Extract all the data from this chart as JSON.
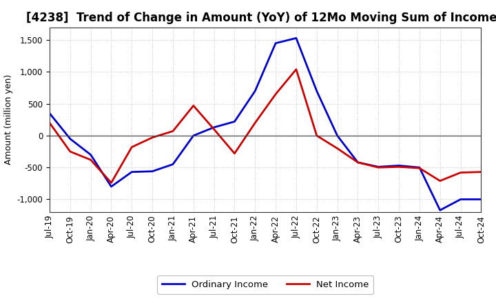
{
  "title": "[4238]  Trend of Change in Amount (YoY) of 12Mo Moving Sum of Incomes",
  "ylabel": "Amount (million yen)",
  "x_labels": [
    "Jul-19",
    "Oct-19",
    "Jan-20",
    "Apr-20",
    "Jul-20",
    "Oct-20",
    "Jan-21",
    "Apr-21",
    "Jul-21",
    "Oct-21",
    "Jan-22",
    "Apr-22",
    "Jul-22",
    "Oct-22",
    "Jan-23",
    "Apr-23",
    "Jul-23",
    "Oct-23",
    "Jan-24",
    "Apr-24",
    "Jul-24",
    "Oct-24"
  ],
  "ordinary_income": [
    350,
    -50,
    -300,
    -800,
    -570,
    -560,
    -450,
    0,
    130,
    220,
    700,
    1450,
    1530,
    700,
    0,
    -420,
    -490,
    -470,
    -500,
    -1170,
    -1000,
    -1000
  ],
  "net_income": [
    200,
    -250,
    -380,
    -740,
    -180,
    -30,
    70,
    470,
    100,
    -280,
    200,
    650,
    1040,
    0,
    -200,
    -420,
    -500,
    -490,
    -510,
    -710,
    -580,
    -570
  ],
  "ordinary_color": "#0000cc",
  "net_color": "#cc0000",
  "grid_color": "#bbbbbb",
  "background_color": "#FFFFFF",
  "ylim": [
    -1200,
    1700
  ],
  "yticks": [
    -1000,
    -500,
    0,
    500,
    1000,
    1500
  ],
  "legend_ordinary": "Ordinary Income",
  "legend_net": "Net Income",
  "line_width": 2.0,
  "title_fontsize": 12,
  "axis_fontsize": 9,
  "tick_fontsize": 8.5
}
